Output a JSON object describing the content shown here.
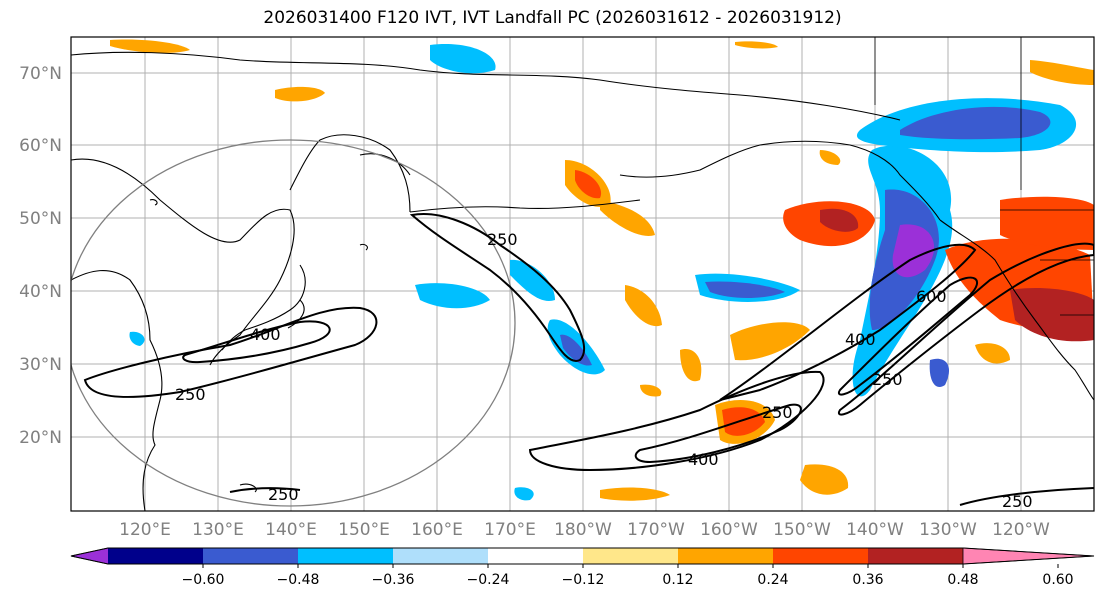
{
  "title": "2026031400 F120 IVT, IVT Landfall PC (2026031612 - 2026031912)",
  "lat_labels": [
    "70°N",
    "60°N",
    "50°N",
    "40°N",
    "30°N",
    "20°N"
  ],
  "lon_labels": [
    "120°E",
    "130°E",
    "140°E",
    "150°E",
    "160°E",
    "170°E",
    "180°W",
    "170°W",
    "160°W",
    "150°W",
    "140°W",
    "130°W",
    "120°W"
  ],
  "contour_labels": [
    "250",
    "400",
    "250",
    "400",
    "250",
    "600",
    "400",
    "250",
    "250",
    "250"
  ],
  "colorbar": {
    "tick_labels": [
      "−0.60",
      "−0.48",
      "−0.36",
      "−0.24",
      "−0.12",
      "0.12",
      "0.24",
      "0.36",
      "0.48",
      "0.60"
    ],
    "colors": [
      "#9b30d8",
      "#00008b",
      "#3a5bd0",
      "#00bfff",
      "#afdffb",
      "#ffffff",
      "#ffe78a",
      "#ffa500",
      "#ff4500",
      "#b22222",
      "#ff85b3"
    ],
    "extend": "both"
  },
  "map_style": {
    "land_fill": "#ffffff",
    "ocean_fill": "#ffffff",
    "grid": true,
    "coastline_color": "#000000",
    "circle_color": "#808080"
  }
}
